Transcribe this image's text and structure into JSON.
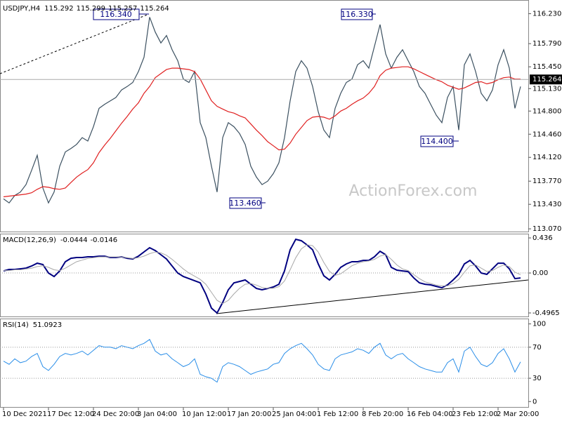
{
  "chart_data": [
    {
      "type": "line",
      "title": "USDJPY,H4",
      "quote": [
        115.292,
        115.299,
        115.257,
        115.264
      ],
      "series": [
        {
          "color": "#3b5060",
          "values": [
            113.51,
            113.45,
            113.56,
            113.61,
            113.72,
            113.93,
            114.15,
            113.67,
            113.45,
            113.61,
            113.99,
            114.2,
            114.25,
            114.31,
            114.41,
            114.36,
            114.57,
            114.84,
            114.9,
            114.95,
            115.0,
            115.11,
            115.16,
            115.22,
            115.38,
            115.59,
            116.18,
            115.96,
            115.8,
            115.91,
            115.7,
            115.54,
            115.27,
            115.22,
            115.38,
            114.63,
            114.41,
            113.99,
            113.61,
            114.41,
            114.63,
            114.57,
            114.47,
            114.31,
            113.99,
            113.83,
            113.72,
            113.77,
            113.88,
            114.04,
            114.41,
            114.95,
            115.38,
            115.54,
            115.43,
            115.16,
            114.79,
            114.52,
            114.41,
            114.84,
            115.06,
            115.22,
            115.27,
            115.48,
            115.54,
            115.43,
            115.75,
            116.07,
            115.64,
            115.43,
            115.59,
            115.7,
            115.54,
            115.38,
            115.16,
            115.06,
            114.9,
            114.74,
            114.63,
            115.0,
            115.16,
            114.52,
            115.48,
            115.64,
            115.38,
            115.06,
            114.95,
            115.11,
            115.48,
            115.7,
            115.43,
            114.84,
            115.16
          ]
        },
        {
          "color": "#e02020",
          "values": [
            113.54,
            113.55,
            113.56,
            113.57,
            113.58,
            113.6,
            113.65,
            113.69,
            113.68,
            113.66,
            113.65,
            113.67,
            113.75,
            113.83,
            113.89,
            113.94,
            114.04,
            114.19,
            114.3,
            114.4,
            114.51,
            114.62,
            114.72,
            114.83,
            114.92,
            115.06,
            115.16,
            115.29,
            115.35,
            115.41,
            115.43,
            115.43,
            115.42,
            115.41,
            115.38,
            115.27,
            115.11,
            114.95,
            114.87,
            114.83,
            114.79,
            114.77,
            114.73,
            114.7,
            114.61,
            114.52,
            114.44,
            114.35,
            114.29,
            114.23,
            114.24,
            114.33,
            114.46,
            114.56,
            114.66,
            114.71,
            114.72,
            114.71,
            114.68,
            114.73,
            114.8,
            114.84,
            114.9,
            114.95,
            114.99,
            115.06,
            115.16,
            115.32,
            115.4,
            115.43,
            115.44,
            115.45,
            115.45,
            115.42,
            115.38,
            115.34,
            115.3,
            115.26,
            115.23,
            115.18,
            115.15,
            115.12,
            115.14,
            115.18,
            115.22,
            115.23,
            115.2,
            115.22,
            115.26,
            115.29,
            115.3,
            115.27,
            115.27
          ]
        }
      ],
      "ylim": [
        113.03,
        116.39
      ],
      "yticks": [
        {
          "value": 116.23,
          "label": "116.230"
        },
        {
          "value": 115.79,
          "label": "115.790"
        },
        {
          "value": 115.45,
          "label": "115.450"
        },
        {
          "value": 115.13,
          "label": "115.130"
        },
        {
          "value": 114.8,
          "label": "114.800"
        },
        {
          "value": 114.46,
          "label": "114.460"
        },
        {
          "value": 114.12,
          "label": "114.120"
        },
        {
          "value": 113.77,
          "label": "113.770"
        },
        {
          "value": 113.43,
          "label": "113.430"
        },
        {
          "value": 113.07,
          "label": "113.070"
        }
      ],
      "last": 115.264,
      "annotations": [
        "116.340",
        "116.330",
        "114.400",
        "113.460"
      ],
      "watermark": "ActionForex.com"
    },
    {
      "type": "line",
      "title": "MACD(12,26,9)",
      "quote": [
        -0.0444,
        -0.0146
      ],
      "series": [
        {
          "color": "#000080",
          "width": 2,
          "values": [
            0.026,
            0.044,
            0.044,
            0.052,
            0.061,
            0.087,
            0.122,
            0.105,
            0,
            -0.044,
            0.026,
            0.14,
            0.183,
            0.192,
            0.192,
            0.201,
            0.201,
            0.209,
            0.209,
            0.192,
            0.192,
            0.201,
            0.183,
            0.174,
            0.209,
            0.262,
            0.314,
            0.279,
            0.227,
            0.174,
            0.087,
            0,
            -0.044,
            -0.07,
            -0.096,
            -0.122,
            -0.262,
            -0.436,
            -0.497,
            -0.366,
            -0.209,
            -0.122,
            -0.105,
            -0.087,
            -0.14,
            -0.192,
            -0.209,
            -0.192,
            -0.174,
            -0.14,
            0.026,
            0.288,
            0.419,
            0.401,
            0.349,
            0.288,
            0.113,
            -0.035,
            -0.087,
            -0.017,
            0.07,
            0.113,
            0.14,
            0.14,
            0.157,
            0.157,
            0.201,
            0.27,
            0.227,
            0.07,
            0.035,
            0.026,
            0.017,
            -0.061,
            -0.122,
            -0.14,
            -0.148,
            -0.166,
            -0.183,
            -0.148,
            -0.087,
            -0.017,
            0.113,
            0.157,
            0.087,
            0,
            -0.017,
            0.052,
            0.122,
            0.122,
            0.052,
            -0.07,
            -0.061
          ]
        },
        {
          "color": "#a8a8a8",
          "width": 1,
          "values": [
            0.03,
            0.03,
            0.04,
            0.04,
            0.05,
            0.06,
            0.08,
            0.09,
            0.07,
            0.04,
            0.03,
            0.06,
            0.1,
            0.14,
            0.16,
            0.18,
            0.19,
            0.2,
            0.2,
            0.2,
            0.2,
            0.2,
            0.19,
            0.18,
            0.19,
            0.21,
            0.24,
            0.26,
            0.25,
            0.22,
            0.17,
            0.11,
            0.05,
            0.0,
            -0.04,
            -0.08,
            -0.14,
            -0.24,
            -0.34,
            -0.38,
            -0.34,
            -0.26,
            -0.19,
            -0.14,
            -0.13,
            -0.15,
            -0.18,
            -0.19,
            -0.19,
            -0.17,
            -0.1,
            0.04,
            0.19,
            0.3,
            0.35,
            0.34,
            0.26,
            0.13,
            0.02,
            -0.03,
            -0.01,
            0.04,
            0.09,
            0.12,
            0.14,
            0.15,
            0.17,
            0.21,
            0.23,
            0.17,
            0.1,
            0.05,
            0.03,
            -0.02,
            -0.07,
            -0.11,
            -0.13,
            -0.15,
            -0.16,
            -0.16,
            -0.13,
            -0.08,
            0.01,
            0.09,
            0.1,
            0.06,
            0.02,
            0.03,
            0.07,
            0.1,
            0.08,
            0.01,
            -0.02
          ]
        }
      ],
      "ylim": [
        -0.54,
        0.48
      ],
      "yticks": [
        0.436,
        {
          "value": 0,
          "label": "0.00"
        },
        -0.4965
      ],
      "levels": [
        0
      ]
    },
    {
      "type": "line",
      "title": "RSI(14)",
      "quote": [
        51.0923
      ],
      "series": [
        {
          "color": "#2a8ee8",
          "width": 1,
          "values": [
            52,
            48,
            55,
            50,
            52,
            58,
            62,
            45,
            40,
            48,
            58,
            62,
            60,
            62,
            65,
            60,
            66,
            72,
            70,
            70,
            68,
            72,
            70,
            68,
            72,
            75,
            80,
            65,
            60,
            62,
            55,
            50,
            45,
            48,
            55,
            35,
            32,
            30,
            25,
            45,
            50,
            48,
            45,
            40,
            35,
            38,
            40,
            42,
            48,
            50,
            62,
            68,
            72,
            75,
            68,
            60,
            48,
            42,
            40,
            55,
            60,
            62,
            64,
            68,
            66,
            62,
            70,
            75,
            60,
            55,
            60,
            62,
            55,
            50,
            45,
            42,
            40,
            38,
            38,
            50,
            55,
            38,
            65,
            70,
            58,
            48,
            45,
            50,
            62,
            68,
            55,
            38,
            51
          ]
        }
      ],
      "ylim": [
        -7,
        106
      ],
      "yticks": [
        100,
        70,
        30,
        0
      ],
      "levels": [
        70,
        30
      ],
      "categories": [
        "10 Dec 2021",
        null,
        null,
        null,
        null,
        null,
        null,
        null,
        "17 Dec 12:00",
        null,
        null,
        null,
        null,
        null,
        null,
        null,
        "24 Dec 20:00",
        null,
        null,
        null,
        null,
        null,
        null,
        null,
        "3 Jan 04:00",
        null,
        null,
        null,
        null,
        null,
        null,
        null,
        "10 Jan 12:00",
        null,
        null,
        null,
        null,
        null,
        null,
        null,
        "17 Jan 20:00",
        null,
        null,
        null,
        null,
        null,
        null,
        null,
        "25 Jan 04:00",
        null,
        null,
        null,
        null,
        null,
        null,
        null,
        "1 Feb 12:00",
        null,
        null,
        null,
        null,
        null,
        null,
        null,
        "8 Feb 20:00",
        null,
        null,
        null,
        null,
        null,
        null,
        null,
        "16 Feb 04:00",
        null,
        null,
        null,
        null,
        null,
        null,
        null,
        "23 Feb 12:00",
        null,
        null,
        null,
        null,
        null,
        null,
        null,
        "2 Mar 20:00",
        null,
        null,
        null,
        null
      ]
    }
  ]
}
